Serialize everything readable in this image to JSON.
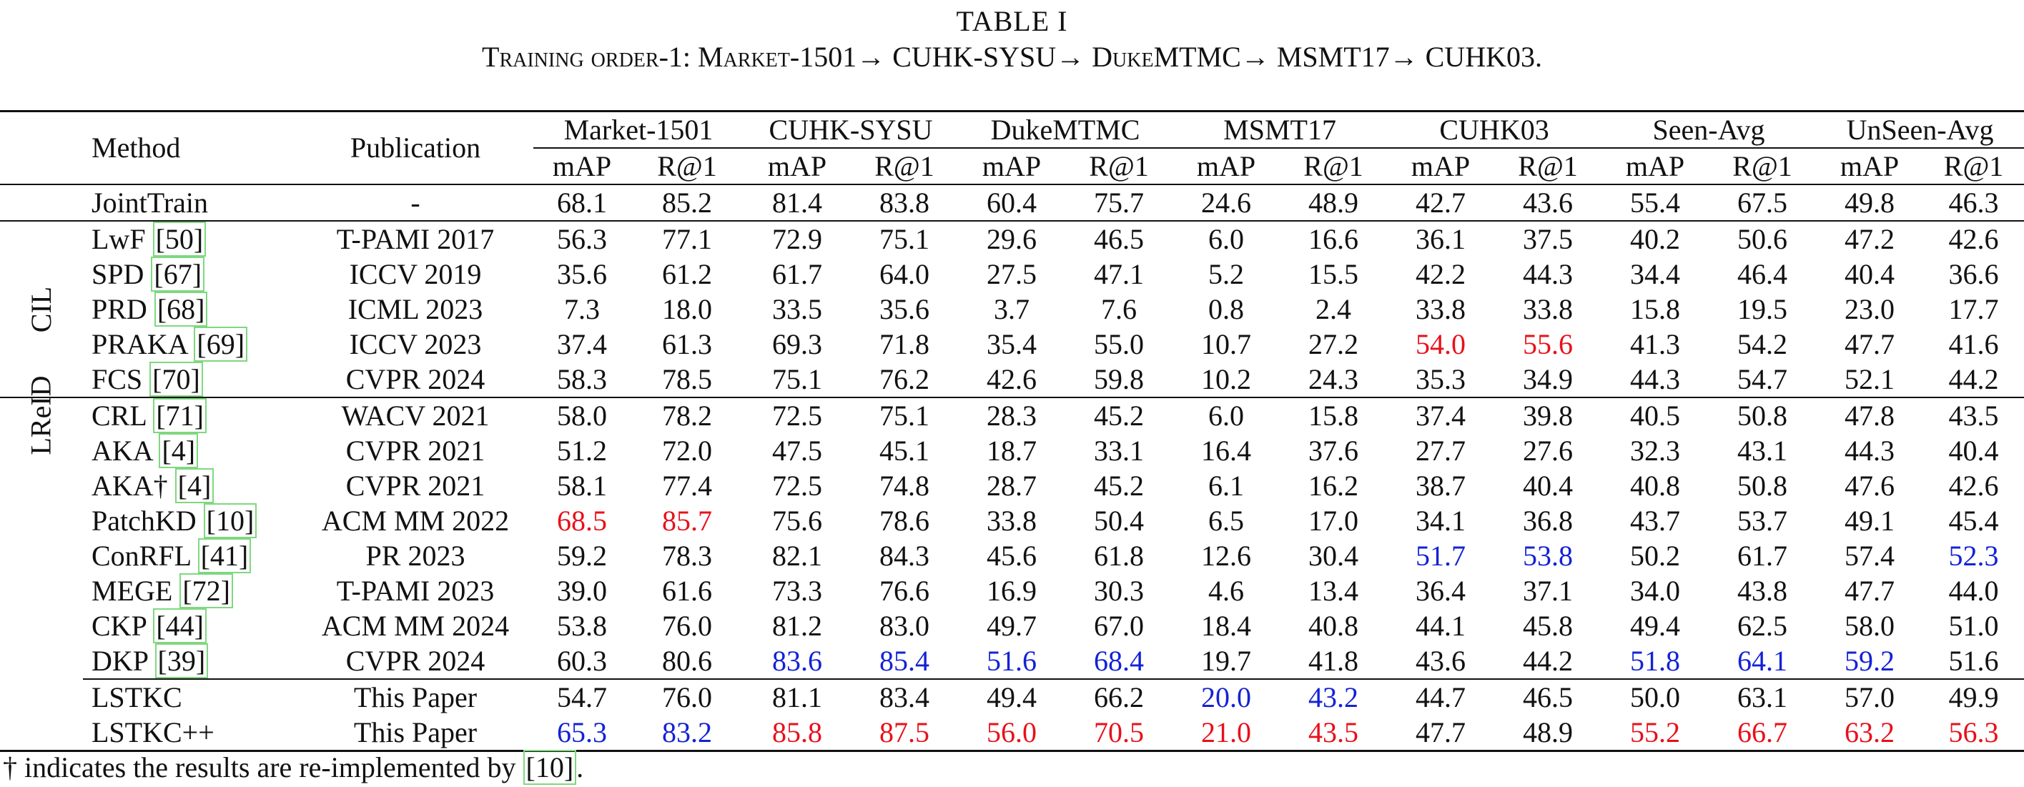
{
  "caption": {
    "line1": "TABLE I",
    "line2": "Training order-1: Market-1501→ CUHK-SYSU→ DukeMTMC→ MSMT17→ CUHK03."
  },
  "header": {
    "method": "Method",
    "publication": "Publication",
    "datasets": [
      "Market-1501",
      "CUHK-SYSU",
      "DukeMTMC",
      "MSMT17",
      "CUHK03",
      "Seen-Avg",
      "UnSeen-Avg"
    ],
    "metrics": [
      "mAP",
      "R@1"
    ]
  },
  "groups": [
    "CIL",
    "LReID"
  ],
  "rows": [
    {
      "method": "JointTrain",
      "cite": "",
      "pub": "-",
      "values": [
        "68.1",
        "85.2",
        "81.4",
        "83.8",
        "60.4",
        "75.7",
        "24.6",
        "48.9",
        "42.7",
        "43.6",
        "55.4",
        "67.5",
        "49.8",
        "46.3"
      ]
    },
    {
      "method": "LwF ",
      "cite": "[50]",
      "pub": "T-PAMI 2017",
      "values": [
        "56.3",
        "77.1",
        "72.9",
        "75.1",
        "29.6",
        "46.5",
        "6.0",
        "16.6",
        "36.1",
        "37.5",
        "40.2",
        "50.6",
        "47.2",
        "42.6"
      ]
    },
    {
      "method": "SPD ",
      "cite": "[67]",
      "pub": "ICCV 2019",
      "values": [
        "35.6",
        "61.2",
        "61.7",
        "64.0",
        "27.5",
        "47.1",
        "5.2",
        "15.5",
        "42.2",
        "44.3",
        "34.4",
        "46.4",
        "40.4",
        "36.6"
      ]
    },
    {
      "method": "PRD ",
      "cite": "[68]",
      "pub": "ICML 2023",
      "values": [
        "7.3",
        "18.0",
        "33.5",
        "35.6",
        "3.7",
        "7.6",
        "0.8",
        "2.4",
        "33.8",
        "33.8",
        "15.8",
        "19.5",
        "23.0",
        "17.7"
      ]
    },
    {
      "method": "PRAKA ",
      "cite": "[69]",
      "pub": "ICCV 2023",
      "values": [
        "37.4",
        "61.3",
        "69.3",
        "71.8",
        "35.4",
        "55.0",
        "10.7",
        "27.2",
        "54.0",
        "55.6",
        "41.3",
        "54.2",
        "47.7",
        "41.6"
      ]
    },
    {
      "method": "FCS ",
      "cite": "[70]",
      "pub": "CVPR 2024",
      "values": [
        "58.3",
        "78.5",
        "75.1",
        "76.2",
        "42.6",
        "59.8",
        "10.2",
        "24.3",
        "35.3",
        "34.9",
        "44.3",
        "54.7",
        "52.1",
        "44.2"
      ]
    },
    {
      "method": "CRL ",
      "cite": "[71]",
      "pub": "WACV 2021",
      "values": [
        "58.0",
        "78.2",
        "72.5",
        "75.1",
        "28.3",
        "45.2",
        "6.0",
        "15.8",
        "37.4",
        "39.8",
        "40.5",
        "50.8",
        "47.8",
        "43.5"
      ]
    },
    {
      "method": "AKA ",
      "cite": "[4]",
      "pub": "CVPR 2021",
      "values": [
        "51.2",
        "72.0",
        "47.5",
        "45.1",
        "18.7",
        "33.1",
        "16.4",
        "37.6",
        "27.7",
        "27.6",
        "32.3",
        "43.1",
        "44.3",
        "40.4"
      ]
    },
    {
      "method": "AKA† ",
      "cite": "[4]",
      "pub": "CVPR 2021",
      "values": [
        "58.1",
        "77.4",
        "72.5",
        "74.8",
        "28.7",
        "45.2",
        "6.1",
        "16.2",
        "38.7",
        "40.4",
        "40.8",
        "50.8",
        "47.6",
        "42.6"
      ]
    },
    {
      "method": "PatchKD ",
      "cite": "[10]",
      "pub": "ACM MM 2022",
      "values": [
        "68.5",
        "85.7",
        "75.6",
        "78.6",
        "33.8",
        "50.4",
        "6.5",
        "17.0",
        "34.1",
        "36.8",
        "43.7",
        "53.7",
        "49.1",
        "45.4"
      ]
    },
    {
      "method": "ConRFL ",
      "cite": "[41]",
      "pub": "PR 2023",
      "values": [
        "59.2",
        "78.3",
        "82.1",
        "84.3",
        "45.6",
        "61.8",
        "12.6",
        "30.4",
        "51.7",
        "53.8",
        "50.2",
        "61.7",
        "57.4",
        "52.3"
      ]
    },
    {
      "method": "MEGE ",
      "cite": "[72]",
      "pub": "T-PAMI 2023",
      "values": [
        "39.0",
        "61.6",
        "73.3",
        "76.6",
        "16.9",
        "30.3",
        "4.6",
        "13.4",
        "36.4",
        "37.1",
        "34.0",
        "43.8",
        "47.7",
        "44.0"
      ]
    },
    {
      "method": "CKP ",
      "cite": "[44]",
      "pub": "ACM MM 2024",
      "values": [
        "53.8",
        "76.0",
        "81.2",
        "83.0",
        "49.7",
        "67.0",
        "18.4",
        "40.8",
        "44.1",
        "45.8",
        "49.4",
        "62.5",
        "58.0",
        "51.0"
      ]
    },
    {
      "method": "DKP ",
      "cite": "[39]",
      "pub": "CVPR 2024",
      "values": [
        "60.3",
        "80.6",
        "83.6",
        "85.4",
        "51.6",
        "68.4",
        "19.7",
        "41.8",
        "43.6",
        "44.2",
        "51.8",
        "64.1",
        "59.2",
        "51.6"
      ]
    },
    {
      "method": "LSTKC",
      "cite": "",
      "pub": "This Paper",
      "values": [
        "54.7",
        "76.0",
        "81.1",
        "83.4",
        "49.4",
        "66.2",
        "20.0",
        "43.2",
        "44.7",
        "46.5",
        "50.0",
        "63.1",
        "57.0",
        "49.9"
      ]
    },
    {
      "method": "LSTKC++",
      "cite": "",
      "pub": "This Paper",
      "values": [
        "65.3",
        "83.2",
        "85.8",
        "87.5",
        "56.0",
        "70.5",
        "21.0",
        "43.5",
        "47.7",
        "48.9",
        "55.2",
        "66.7",
        "63.2",
        "56.3"
      ]
    }
  ],
  "highlight_colors": {
    "best": "#e8101a",
    "second": "#1322d6"
  },
  "footnote": {
    "text": "† indicates the results are re-implemented by ",
    "cite": "[10]",
    "end": "."
  }
}
